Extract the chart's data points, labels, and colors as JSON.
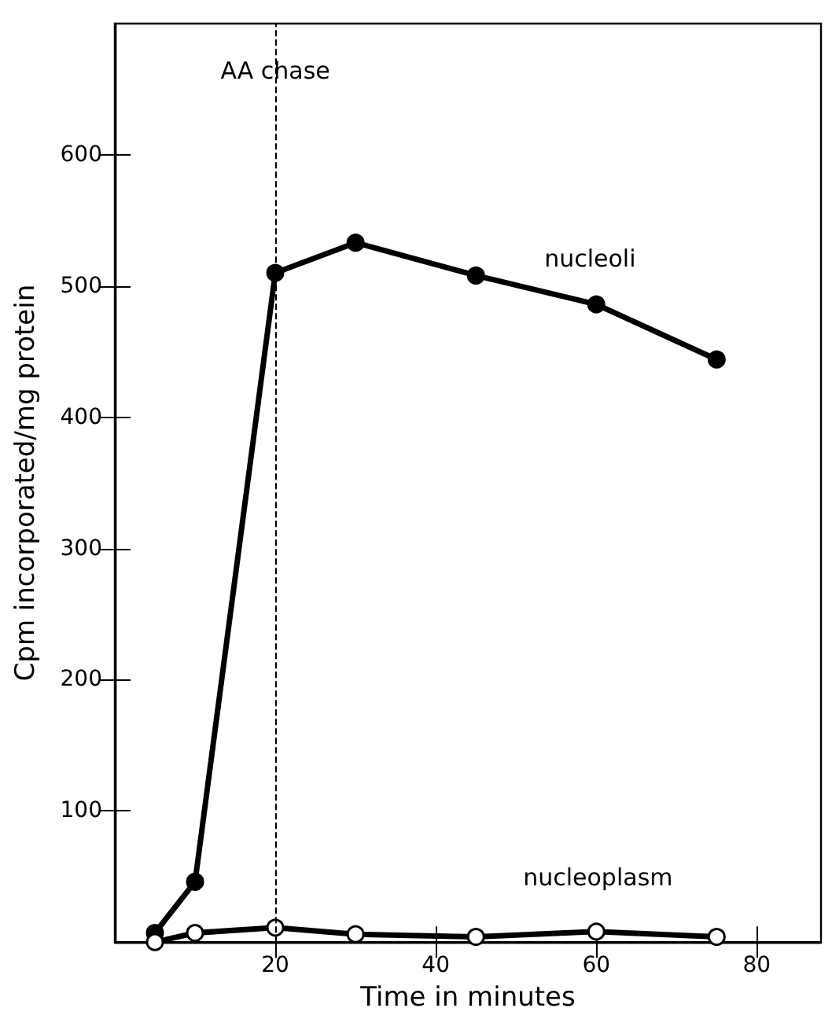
{
  "chart_data": {
    "type": "line",
    "xlabel": "Time in minutes",
    "ylabel": "Cpm incorporated/mg protein",
    "x": [
      5,
      10,
      20,
      30,
      45,
      60,
      75
    ],
    "series": [
      {
        "name": "nucleoli",
        "color": "#000000",
        "marker": "circle",
        "values": [
          7,
          46,
          510,
          533,
          508,
          486,
          444
        ]
      },
      {
        "name": "nucleoplasm",
        "color": "#000000",
        "marker": "open circle",
        "values": [
          0,
          7,
          11,
          6,
          4,
          8,
          4
        ]
      }
    ],
    "xlim": [
      0,
      88
    ],
    "xticks": [
      20,
      40,
      60,
      80
    ],
    "ylim": [
      0,
      700
    ],
    "yticks": [
      100,
      200,
      300,
      400,
      500,
      600
    ],
    "ref_lines": [
      {
        "axis": "x",
        "value": 20,
        "label": "AA chase",
        "line_style": "dashed"
      }
    ],
    "grid": false,
    "line_style": "solid"
  }
}
